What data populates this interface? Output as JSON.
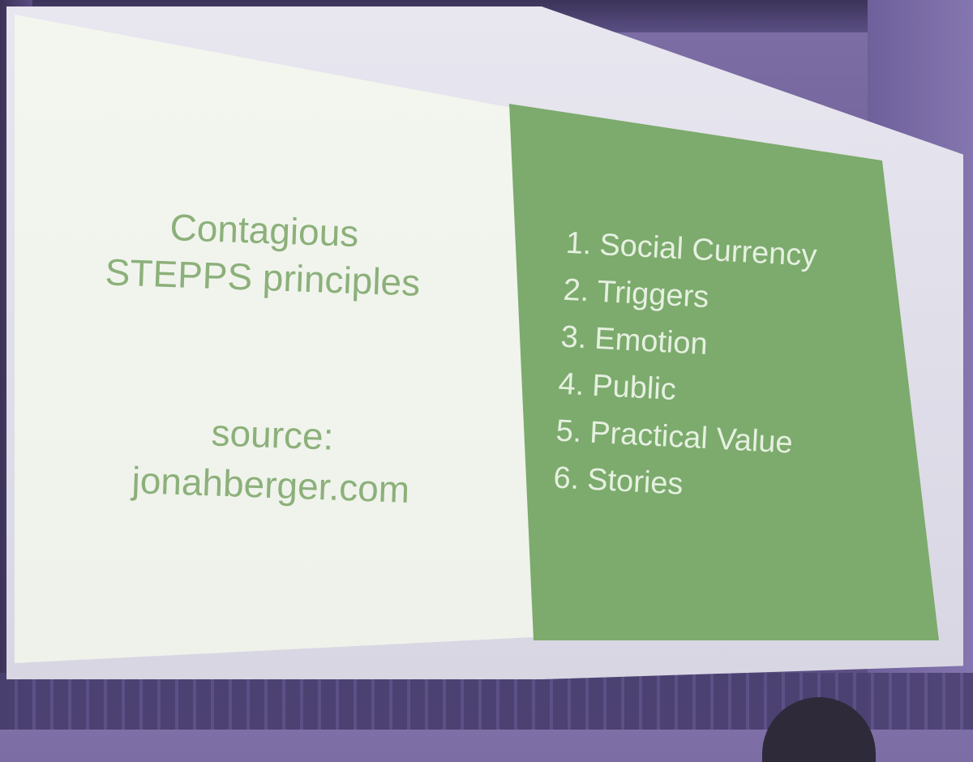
{
  "slide": {
    "title_line1": "Contagious",
    "title_line2": "STEPPS principles",
    "source_label": "source:",
    "source_site": "jonahberger.com",
    "principles": [
      {
        "num": "1.",
        "label": "Social Currency"
      },
      {
        "num": "2.",
        "label": "Triggers"
      },
      {
        "num": "3.",
        "label": "Emotion"
      },
      {
        "num": "4.",
        "label": "Public"
      },
      {
        "num": "5.",
        "label": "Practical Value"
      },
      {
        "num": "6.",
        "label": "Stories"
      }
    ],
    "colors": {
      "left_panel": "#eef2ea",
      "right_panel": "#7cab6d",
      "title_text": "#8cb07a",
      "list_text": "#e6f0e0",
      "room": "#6a5c92"
    }
  }
}
